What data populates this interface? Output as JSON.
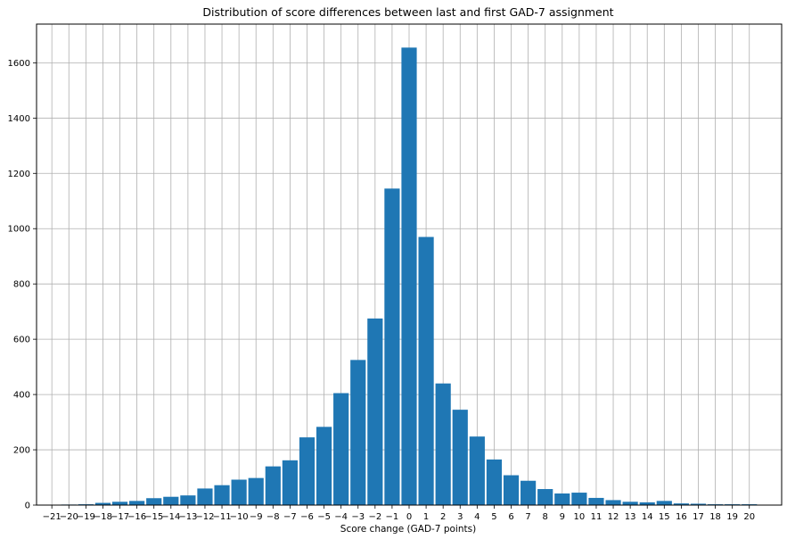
{
  "chart_data": {
    "type": "bar",
    "title": "Distribution of score differences between last and first GAD-7 assignment",
    "xlabel": "Score change (GAD-7 points)",
    "ylabel": "",
    "x_ticks": [
      -21,
      -20,
      -19,
      -18,
      -17,
      -16,
      -15,
      -14,
      -13,
      -12,
      -11,
      -10,
      -9,
      -8,
      -7,
      -6,
      -5,
      -4,
      -3,
      -2,
      -1,
      0,
      1,
      2,
      3,
      4,
      5,
      6,
      7,
      8,
      9,
      10,
      11,
      12,
      13,
      14,
      15,
      16,
      17,
      18,
      19,
      20
    ],
    "x_tick_labels": [
      "−21",
      "−20",
      "−19",
      "−18",
      "−17",
      "−16",
      "−15",
      "−14",
      "−13",
      "−12",
      "−11",
      "−10",
      "−9",
      "−8",
      "−7",
      "−6",
      "−5",
      "−4",
      "−3",
      "−2",
      "−1",
      "0",
      "1",
      "2",
      "3",
      "4",
      "5",
      "6",
      "7",
      "8",
      "9",
      "10",
      "11",
      "12",
      "13",
      "14",
      "15",
      "16",
      "17",
      "18",
      "19",
      "20"
    ],
    "y_ticks": [
      0,
      200,
      400,
      600,
      800,
      1000,
      1200,
      1400,
      1600
    ],
    "y_tick_labels": [
      "0",
      "200",
      "400",
      "600",
      "800",
      "1000",
      "1200",
      "1400",
      "1600"
    ],
    "xlim": [
      -21.9,
      21.9
    ],
    "ylim": [
      0,
      1740
    ],
    "categories": [
      -20,
      -19,
      -18,
      -17,
      -16,
      -15,
      -14,
      -13,
      -12,
      -11,
      -10,
      -9,
      -8,
      -7,
      -6,
      -5,
      -4,
      -3,
      -2,
      -1,
      0,
      1,
      2,
      3,
      4,
      5,
      6,
      7,
      8,
      9,
      10,
      11,
      12,
      13,
      14,
      15,
      16,
      17,
      18,
      19,
      20
    ],
    "values": [
      2,
      3,
      8,
      12,
      15,
      25,
      30,
      35,
      60,
      72,
      92,
      98,
      140,
      162,
      245,
      283,
      405,
      525,
      675,
      1145,
      1655,
      970,
      440,
      345,
      248,
      165,
      108,
      88,
      58,
      42,
      45,
      26,
      18,
      12,
      10,
      15,
      6,
      5,
      3,
      3,
      3
    ],
    "bar_color": "#1f77b4",
    "grid": true
  }
}
